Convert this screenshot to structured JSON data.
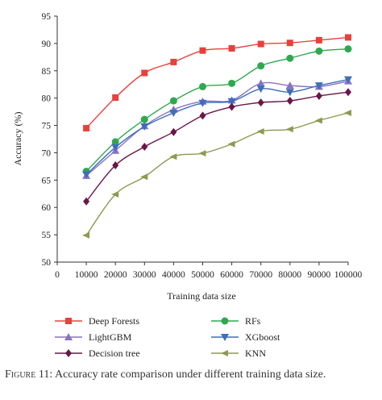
{
  "chart_data": {
    "type": "line",
    "xlabel": "Training data size",
    "ylabel": "Accuracy (%)",
    "x": [
      10000,
      20000,
      30000,
      40000,
      50000,
      60000,
      70000,
      80000,
      90000,
      100000
    ],
    "x_ticks": [
      "0",
      "10000",
      "20000",
      "30000",
      "40000",
      "50000",
      "60000",
      "70000",
      "80000",
      "90000",
      "100000"
    ],
    "xlim": [
      0,
      100000
    ],
    "ylim": [
      50,
      95
    ],
    "y_ticks": [
      50,
      55,
      60,
      65,
      70,
      75,
      80,
      85,
      90,
      95
    ],
    "grid": false,
    "legend_position": "bottom",
    "series": [
      {
        "name": "Deep Forests",
        "color": "#e8403a",
        "marker": "square",
        "values": [
          74.5,
          80.1,
          84.6,
          86.6,
          88.7,
          89.1,
          89.9,
          90.1,
          90.6,
          91.1
        ]
      },
      {
        "name": "RFs",
        "color": "#2fa84f",
        "marker": "circle",
        "values": [
          66.6,
          72.0,
          76.1,
          79.5,
          82.1,
          82.7,
          85.9,
          87.3,
          88.6,
          89.0
        ]
      },
      {
        "name": "LightGBM",
        "color": "#8a72c4",
        "marker": "triangle-up",
        "values": [
          65.8,
          70.4,
          74.9,
          77.9,
          79.4,
          79.6,
          82.7,
          82.3,
          82.1,
          83.1
        ]
      },
      {
        "name": "XGboost",
        "color": "#3d6fb8",
        "marker": "triangle-down",
        "values": [
          66.0,
          71.0,
          74.8,
          77.3,
          79.1,
          79.4,
          81.7,
          81.1,
          82.3,
          83.4
        ]
      },
      {
        "name": "Decision tree",
        "color": "#6b1548",
        "marker": "diamond",
        "values": [
          61.1,
          67.7,
          71.1,
          73.8,
          76.8,
          78.4,
          79.2,
          79.5,
          80.4,
          81.1
        ]
      },
      {
        "name": "KNN",
        "color": "#8c9a52",
        "marker": "triangle-left",
        "values": [
          54.9,
          62.4,
          65.6,
          69.3,
          69.9,
          71.6,
          73.9,
          74.3,
          75.9,
          77.3
        ]
      }
    ]
  },
  "caption": {
    "label": "Figure 11:",
    "text": "Accuracy rate comparison under different training data size."
  }
}
